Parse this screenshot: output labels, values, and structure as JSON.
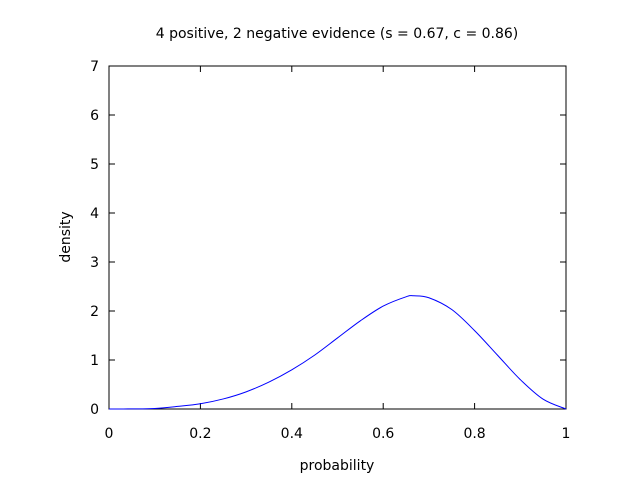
{
  "chart_data": {
    "type": "line",
    "title": "4 positive, 2 negative evidence (s = 0.67, c = 0.86)",
    "xlabel": "probability",
    "ylabel": "density",
    "xlim": [
      0,
      1
    ],
    "ylim": [
      0,
      7
    ],
    "xticks": [
      "0",
      "0.2",
      "0.4",
      "0.6",
      "0.8",
      "1"
    ],
    "yticks": [
      "0",
      "1",
      "2",
      "3",
      "4",
      "5",
      "6",
      "7"
    ],
    "grid": false,
    "legend": "none",
    "line_color": "#0000ff",
    "series": [
      {
        "x": [
          0,
          0.05,
          0.1,
          0.15,
          0.2,
          0.25,
          0.3,
          0.35,
          0.4,
          0.45,
          0.5,
          0.55,
          0.6,
          0.65,
          0.667,
          0.7,
          0.75,
          0.8,
          0.85,
          0.9,
          0.95,
          1
        ],
        "y": [
          0,
          0.002,
          0.0105,
          0.0525,
          0.1075,
          0.205,
          0.35,
          0.55,
          0.8,
          1.1,
          1.45,
          1.8,
          2.1,
          2.29,
          2.31,
          2.27,
          2.03,
          1.6,
          1.1,
          0.6,
          0.2,
          0
        ]
      }
    ]
  }
}
